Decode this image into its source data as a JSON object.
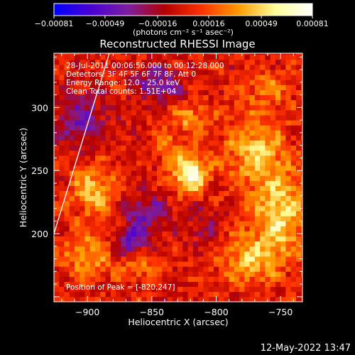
{
  "chart_data": {
    "type": "heatmap",
    "title": "Reconstructed RHESSI Image",
    "xlabel": "Heliocentric X (arcsec)",
    "ylabel": "Heliocentric Y (arcsec)",
    "xlim": [
      -926,
      -733
    ],
    "ylim": [
      146,
      343
    ],
    "xticks": [
      -900,
      -850,
      -800,
      -750
    ],
    "xtick_labels": [
      "−900",
      "−850",
      "−800",
      "−750"
    ],
    "yticks": [
      200,
      250,
      300
    ],
    "ytick_labels": [
      "200",
      "250",
      "300"
    ],
    "colorbar": {
      "range": [
        -0.00081,
        0.00081
      ],
      "tick_values": [
        -0.00081,
        -0.00049,
        -0.00016,
        0.00016,
        0.00049,
        0.00081
      ],
      "tick_labels": [
        "−0.00081",
        "−0.00049",
        "−0.00016",
        "0.00016",
        "0.00049",
        "0.00081"
      ],
      "unit_label": "(photons cm⁻² s⁻¹ asec⁻²)",
      "colors": [
        "#0000ff",
        "#4b00d2",
        "#7d1ea0",
        "#b40000",
        "#ff3200",
        "#ff9b00",
        "#ffff9b",
        "#ffffff"
      ]
    },
    "annotations": [
      "28-Jul-2011 00:06:56.000 to 00:12:28.000",
      "Detectors: 3F 4F 5F 6F 7F 8F, Att 0",
      "Energy Range: 12.0 - 25.0 keV",
      "Clean    Total counts: 1.51E+04"
    ],
    "peak_label": "Position of Peak = [-820,247]",
    "peak": {
      "x": -820,
      "y": 247,
      "value": 0.00081
    },
    "sources": [
      {
        "x": -820,
        "y": 248,
        "sx": 9,
        "sy": 11,
        "amp": 0.00075
      },
      {
        "x": -820,
        "y": 292,
        "sx": 10,
        "sy": 8,
        "amp": 0.00034
      },
      {
        "x": -770,
        "y": 265,
        "sx": 16,
        "sy": 20,
        "amp": 0.00045
      },
      {
        "x": -750,
        "y": 215,
        "sx": 14,
        "sy": 22,
        "amp": 0.00052
      },
      {
        "x": -775,
        "y": 180,
        "sx": 16,
        "sy": 14,
        "amp": 0.0004
      },
      {
        "x": -895,
        "y": 235,
        "sx": 12,
        "sy": 14,
        "amp": 0.00042
      },
      {
        "x": -900,
        "y": 185,
        "sx": 14,
        "sy": 14,
        "amp": 0.00035
      },
      {
        "x": -860,
        "y": 175,
        "sx": 10,
        "sy": 8,
        "amp": 0.0003
      },
      {
        "x": -838,
        "y": 270,
        "sx": 7,
        "sy": 9,
        "amp": 0.00026
      },
      {
        "x": -760,
        "y": 315,
        "sx": 14,
        "sy": 10,
        "amp": 0.00025
      },
      {
        "x": -855,
        "y": 216,
        "sx": 12,
        "sy": 10,
        "amp": -0.00038
      },
      {
        "x": -867,
        "y": 193,
        "sx": 9,
        "sy": 8,
        "amp": -0.0005
      },
      {
        "x": -845,
        "y": 320,
        "sx": 12,
        "sy": 10,
        "amp": -0.0004
      },
      {
        "x": -905,
        "y": 290,
        "sx": 14,
        "sy": 16,
        "amp": -0.00035
      },
      {
        "x": -810,
        "y": 205,
        "sx": 10,
        "sy": 12,
        "amp": -0.0002
      }
    ],
    "limb_line": [
      [
        -926,
        200
      ],
      [
        -883,
        343
      ]
    ],
    "grid": false
  },
  "timestamp": "12-May-2022 13:47"
}
